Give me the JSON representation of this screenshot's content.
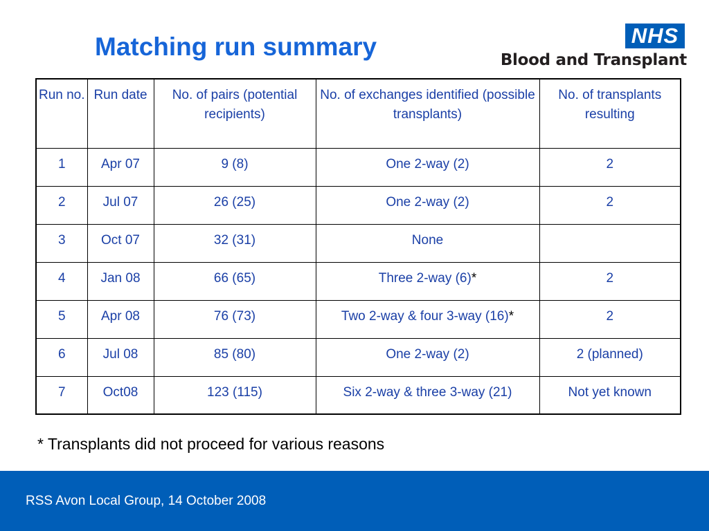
{
  "slide": {
    "title": "Matching run summary"
  },
  "logo": {
    "badge": "NHS",
    "name": "Blood and Transplant",
    "colors": {
      "badge_bg": "#005eb8",
      "badge_text": "#ffffff",
      "name_text": "#231f20"
    }
  },
  "table": {
    "headers": [
      "Run no.",
      "Run date",
      "No. of pairs (potential recipients)",
      "No. of exchanges identified (possible transplants)",
      "No. of transplants resulting"
    ],
    "rows": [
      {
        "run": "1",
        "date": "Apr 07",
        "pairs": "9 (8)",
        "exchanges": "One 2-way (2)",
        "exchanges_mark": "",
        "transplants": "2"
      },
      {
        "run": "2",
        "date": "Jul 07",
        "pairs": "26 (25)",
        "exchanges": "One 2-way (2)",
        "exchanges_mark": "",
        "transplants": "2"
      },
      {
        "run": "3",
        "date": "Oct 07",
        "pairs": "32 (31)",
        "exchanges": "None",
        "exchanges_mark": "",
        "transplants": ""
      },
      {
        "run": "4",
        "date": "Jan 08",
        "pairs": "66 (65)",
        "exchanges": "Three 2-way (6)",
        "exchanges_mark": "*",
        "transplants": "2"
      },
      {
        "run": "5",
        "date": "Apr 08",
        "pairs": "76 (73)",
        "exchanges": "Two 2-way & four 3-way (16)",
        "exchanges_mark": "*",
        "transplants": "2"
      },
      {
        "run": "6",
        "date": "Jul 08",
        "pairs": "85 (80)",
        "exchanges": "One 2-way (2)",
        "exchanges_mark": "",
        "transplants": "2 (planned)"
      },
      {
        "run": "7",
        "date": "Oct08",
        "pairs": "123 (115)",
        "exchanges": "Six 2-way & three 3-way (21)",
        "exchanges_mark": "",
        "transplants": "Not yet known"
      }
    ]
  },
  "footnote": "* Transplants did not proceed for various reasons",
  "footer": {
    "text": "RSS Avon Local Group, 14 October 2008",
    "color": "#005eb8"
  },
  "colors": {
    "title": "#1665d8",
    "table_text": "#1a3fa6",
    "footnote_text": "#000000"
  }
}
